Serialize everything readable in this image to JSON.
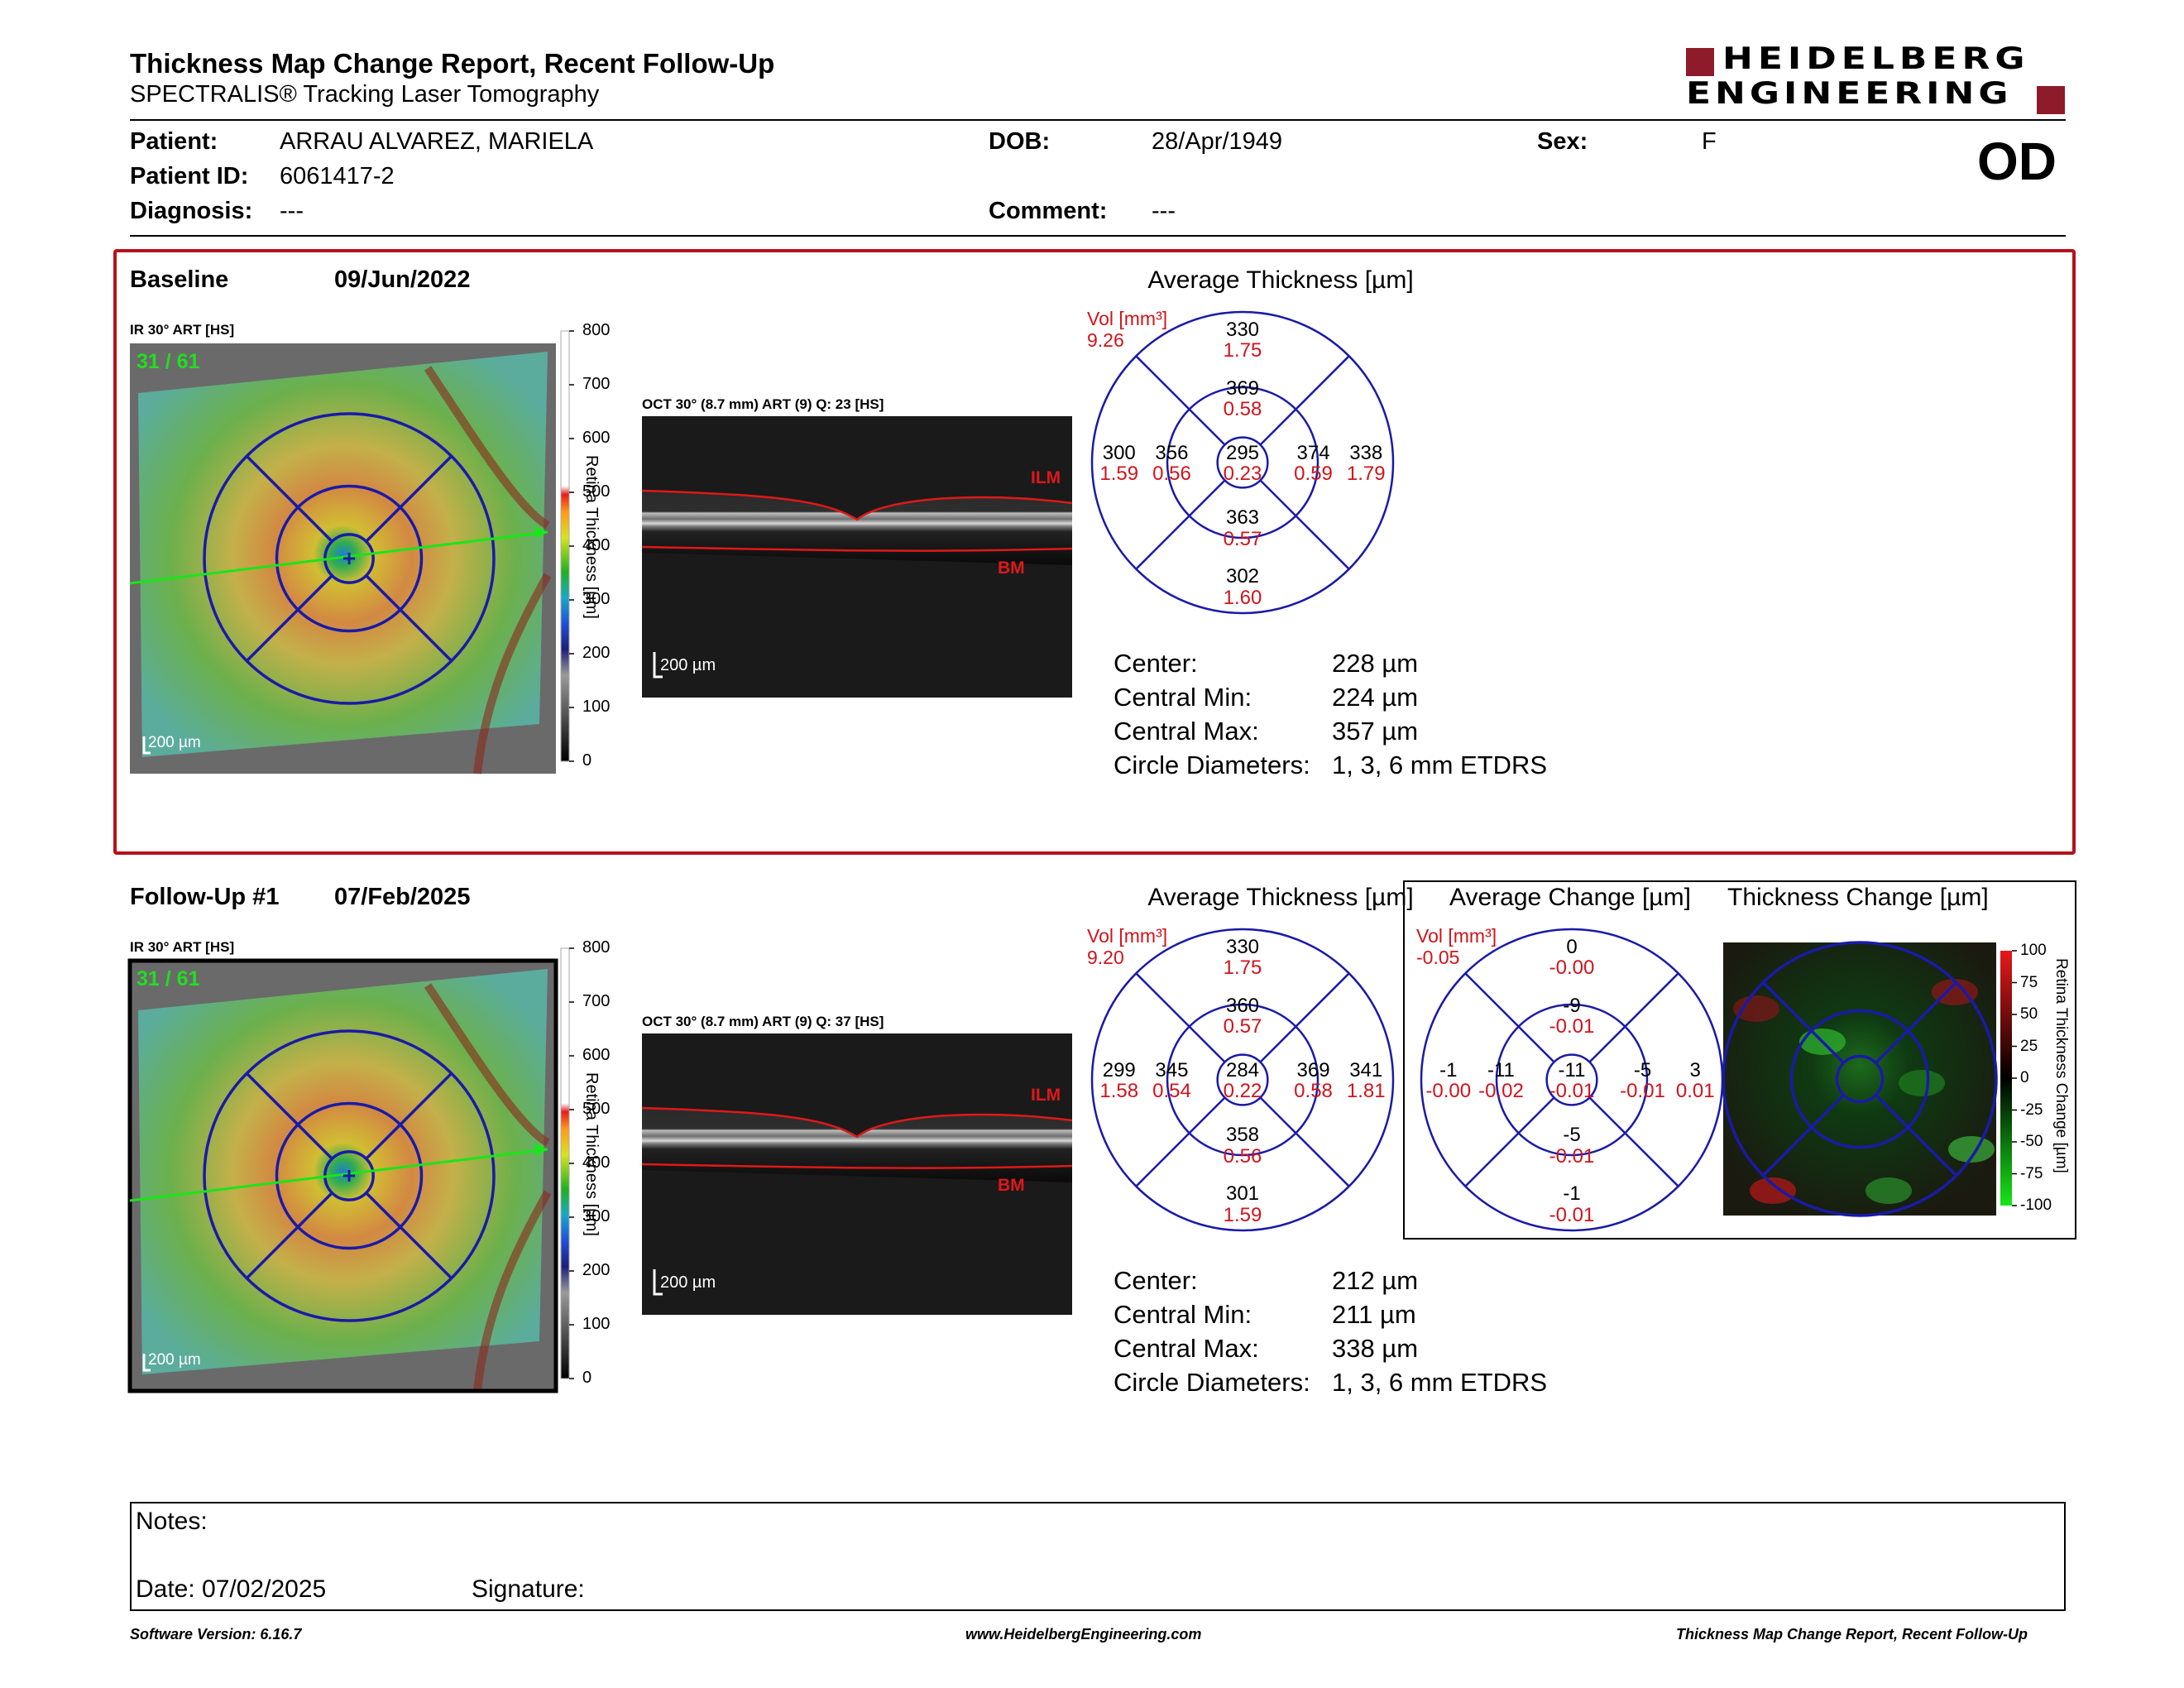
{
  "header": {
    "title": "Thickness Map Change Report, Recent Follow-Up",
    "subtitle": "SPECTRALIS® Tracking Laser Tomography",
    "logo_line1": "HEIDELBERG",
    "logo_line2": "ENGINEERING",
    "eye": "OD"
  },
  "patient": {
    "patient_label": "Patient:",
    "patient_value": "ARRAU ALVAREZ, MARIELA",
    "id_label": "Patient ID:",
    "id_value": "6061417-2",
    "diagnosis_label": "Diagnosis:",
    "diagnosis_value": "---",
    "dob_label": "DOB:",
    "dob_value": "28/Apr/1949",
    "comment_label": "Comment:",
    "comment_value": "---",
    "sex_label": "Sex:",
    "sex_value": "F"
  },
  "baseline": {
    "label": "Baseline",
    "date": "09/Jun/2022",
    "ir_label": "IR 30° ART [HS]",
    "ir_counter": "31 / 61",
    "oct_label": "OCT 30° (8.7 mm) ART (9) Q: 23 [HS]",
    "scale": "200 µm",
    "oct_scale": "200 µm",
    "ilm": "ILM",
    "bm": "BM",
    "colorbar_ticks": [
      "800",
      "700",
      "600",
      "500",
      "400",
      "300",
      "200",
      "100",
      "0"
    ],
    "colorbar_title": "Retina Thickness [µm]",
    "avg_title": "Average Thickness [µm]",
    "vol_label": "Vol [mm³]",
    "vol_value": "9.26",
    "grid": {
      "outer_top": {
        "t": "330",
        "v": "1.75"
      },
      "inner_top": {
        "t": "369",
        "v": "0.58"
      },
      "outer_left": {
        "t": "300",
        "v": "1.59"
      },
      "inner_left": {
        "t": "356",
        "v": "0.56"
      },
      "center": {
        "t": "295",
        "v": "0.23"
      },
      "inner_right": {
        "t": "374",
        "v": "0.59"
      },
      "outer_right": {
        "t": "338",
        "v": "1.79"
      },
      "inner_bottom": {
        "t": "363",
        "v": "0.57"
      },
      "outer_bottom": {
        "t": "302",
        "v": "1.60"
      }
    },
    "metrics": [
      {
        "label": "Center:",
        "value": "228 µm"
      },
      {
        "label": "Central Min:",
        "value": "224 µm"
      },
      {
        "label": "Central Max:",
        "value": "357 µm"
      },
      {
        "label": "Circle Diameters:",
        "value": "1, 3, 6 mm ETDRS"
      }
    ]
  },
  "followup": {
    "label": "Follow-Up #1",
    "date": "07/Feb/2025",
    "ir_label": "IR 30° ART [HS]",
    "ir_counter": "31 / 61",
    "oct_label": "OCT 30° (8.7 mm) ART (9) Q: 37 [HS]",
    "scale": "200 µm",
    "oct_scale": "200 µm",
    "ilm": "ILM",
    "bm": "BM",
    "colorbar_ticks": [
      "800",
      "700",
      "600",
      "500",
      "400",
      "300",
      "200",
      "100",
      "0"
    ],
    "colorbar_title": "Retina Thickness [µm]",
    "avg_title": "Average Thickness [µm]",
    "vol_label": "Vol [mm³]",
    "vol_value": "9.20",
    "grid": {
      "outer_top": {
        "t": "330",
        "v": "1.75"
      },
      "inner_top": {
        "t": "360",
        "v": "0.57"
      },
      "outer_left": {
        "t": "299",
        "v": "1.58"
      },
      "inner_left": {
        "t": "345",
        "v": "0.54"
      },
      "center": {
        "t": "284",
        "v": "0.22"
      },
      "inner_right": {
        "t": "369",
        "v": "0.58"
      },
      "outer_right": {
        "t": "341",
        "v": "1.81"
      },
      "inner_bottom": {
        "t": "358",
        "v": "0.56"
      },
      "outer_bottom": {
        "t": "301",
        "v": "1.59"
      }
    },
    "metrics": [
      {
        "label": "Center:",
        "value": "212 µm"
      },
      {
        "label": "Central Min:",
        "value": "211 µm"
      },
      {
        "label": "Central Max:",
        "value": "338 µm"
      },
      {
        "label": "Circle Diameters:",
        "value": "1, 3, 6 mm ETDRS"
      }
    ]
  },
  "change": {
    "avg_title": "Average Change [µm]",
    "map_title": "Thickness Change [µm]",
    "vol_label": "Vol [mm³]",
    "vol_value": "-0.05",
    "grid": {
      "outer_top": {
        "t": "0",
        "v": "-0.00"
      },
      "inner_top": {
        "t": "-9",
        "v": "-0.01"
      },
      "outer_left": {
        "t": "-1",
        "v": "-0.00"
      },
      "inner_left": {
        "t": "-11",
        "v": "-0.02"
      },
      "center": {
        "t": "-11",
        "v": "-0.01"
      },
      "inner_right": {
        "t": "-5",
        "v": "-0.01"
      },
      "outer_right": {
        "t": "3",
        "v": "0.01"
      },
      "inner_bottom": {
        "t": "-5",
        "v": "-0.01"
      },
      "outer_bottom": {
        "t": "-1",
        "v": "-0.01"
      }
    },
    "colorbar_ticks": [
      "100",
      "75",
      "50",
      "25",
      "0",
      "-25",
      "-50",
      "-75",
      "-100"
    ],
    "colorbar_title": "Retina Thickness Change [µm]"
  },
  "notes": {
    "label": "Notes:",
    "date_label": "Date: 07/02/2025",
    "signature_label": "Signature:"
  },
  "footer": {
    "software": "Software Version: 6.16.7",
    "website": "www.HeidelbergEngineering.com",
    "report": "Thickness Map Change Report, Recent Follow-Up"
  },
  "colors": {
    "accent_red": "#b5121b",
    "grid_blue": "#1a1aa8",
    "value_red": "#d0141c"
  }
}
